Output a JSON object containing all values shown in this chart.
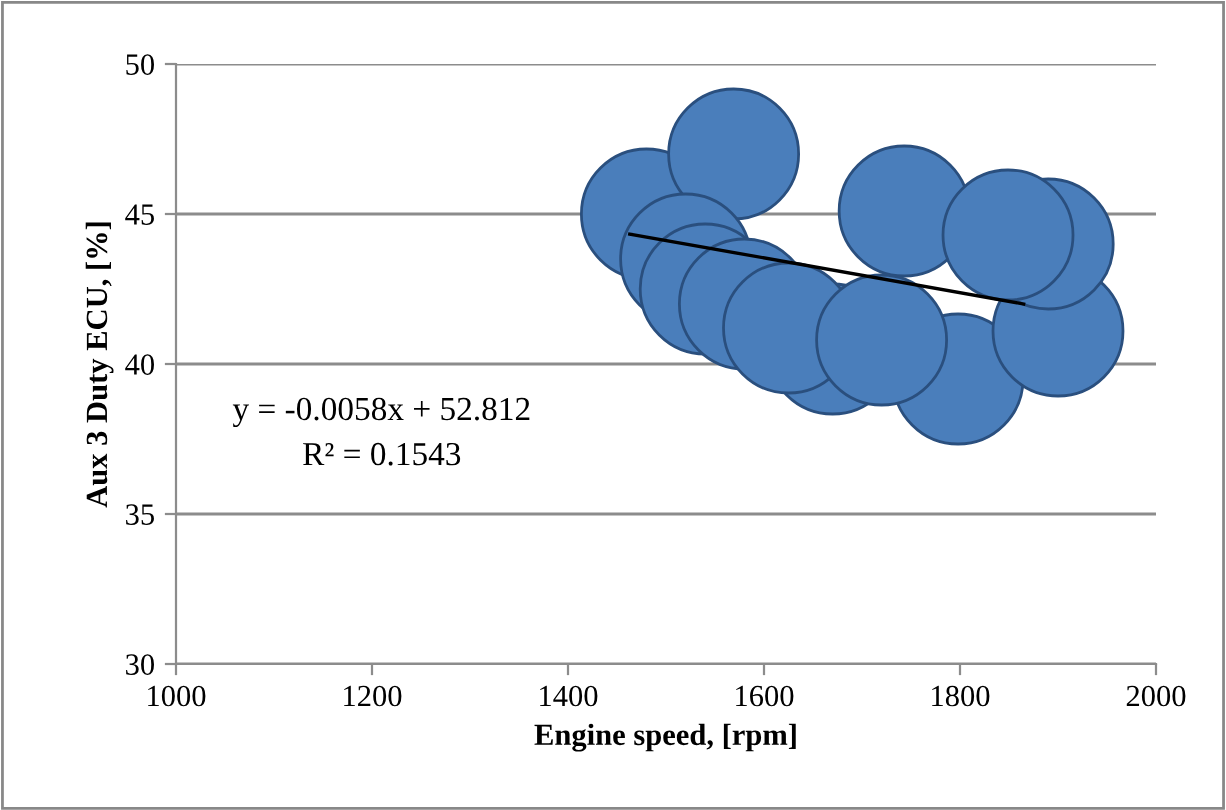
{
  "chart_data": {
    "type": "bubble",
    "xlabel": "Engine speed, [rpm]",
    "ylabel": "Aux 3 Duty ECU, [%]",
    "xlim": [
      1000,
      2000
    ],
    "xticks": [
      1000,
      1200,
      1400,
      1600,
      1800,
      2000
    ],
    "ylim": [
      30,
      50
    ],
    "yticks": [
      30,
      35,
      40,
      45,
      50
    ],
    "grid": "y",
    "annotations": [
      "y = -0.0058x + 52.812",
      "R² = 0.1543"
    ],
    "series": [
      {
        "color": "#4a7ebb",
        "x": [
          1480,
          1569,
          1520,
          1540,
          1580,
          1670,
          1743,
          1798,
          1900,
          1890,
          1849,
          1625,
          1720
        ],
        "values": [
          45,
          47,
          43.5,
          42.5,
          42,
          40.5,
          45.1,
          39.5,
          41.1,
          44,
          44.3,
          41.2,
          40.8
        ],
        "sizes": [
          1,
          1,
          1,
          1,
          1,
          1,
          1,
          1,
          1,
          1,
          1,
          1,
          1
        ]
      },
      {
        "type": "line",
        "color": "#000000",
        "x": [
          1463,
          1865
        ],
        "values": [
          44.33,
          42.0
        ]
      }
    ]
  }
}
